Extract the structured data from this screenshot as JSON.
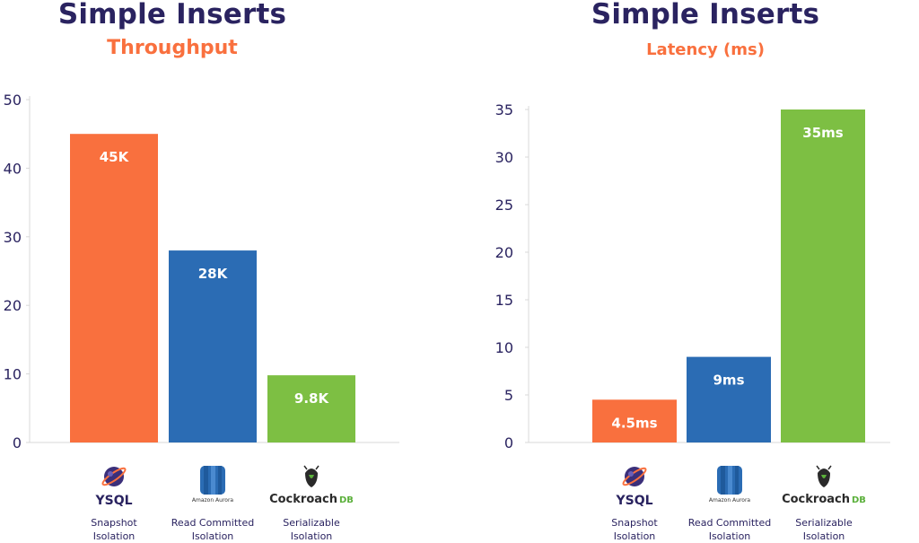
{
  "colors": {
    "ysql": "#f9703e",
    "aurora": "#2b6cb4",
    "cockroach": "#7dbf43",
    "title": "#2a2360",
    "axis": "#d8d8d8"
  },
  "databases": [
    {
      "logo": "YSQL",
      "logo_icon": "yugabyte-planet-icon",
      "caption_line1": "Snapshot",
      "caption_line2": "Isolation"
    },
    {
      "logo": "Amazon Aurora",
      "logo_icon": "aurora-cylinder-icon",
      "caption_line1": "Read Committed",
      "caption_line2": "Isolation"
    },
    {
      "logo": "Cockroach",
      "logo_suffix": "DB",
      "logo_icon": "cockroach-bug-icon",
      "caption_line1": "Serializable",
      "caption_line2": "Isolation"
    }
  ],
  "chart_data": [
    {
      "type": "bar",
      "title": "Simple Inserts",
      "subtitle": "Throughput",
      "categories": [
        "YSQL",
        "Amazon Aurora",
        "CockroachDB"
      ],
      "values": [
        45,
        28,
        9.8
      ],
      "data_labels": [
        "45K",
        "28K",
        "9.8K"
      ],
      "ylim": [
        0,
        50
      ],
      "yticks": [
        0,
        10,
        20,
        30,
        40,
        50
      ],
      "grid": false,
      "legend": "none"
    },
    {
      "type": "bar",
      "title": "Simple Inserts",
      "subtitle": "Latency (ms)",
      "categories": [
        "YSQL",
        "Amazon Aurora",
        "CockroachDB"
      ],
      "values": [
        4.5,
        9,
        35
      ],
      "data_labels": [
        "4.5ms",
        "9ms",
        "35ms"
      ],
      "ylim": [
        0,
        35
      ],
      "yticks": [
        0,
        5,
        10,
        15,
        20,
        25,
        30,
        35
      ],
      "grid": false,
      "legend": "none"
    }
  ]
}
